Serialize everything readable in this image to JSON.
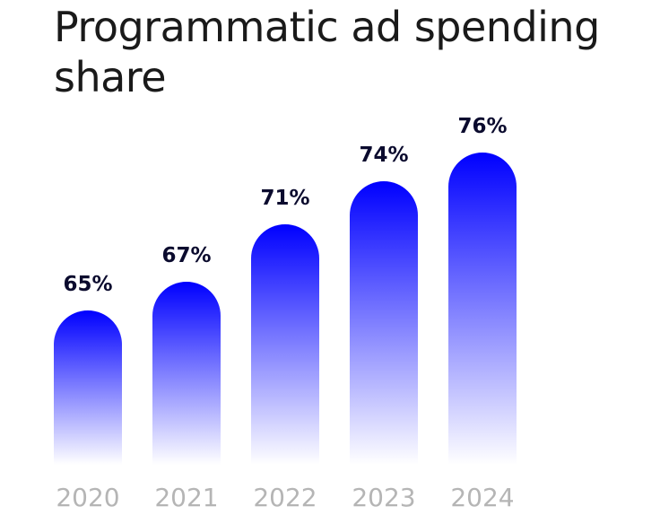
{
  "title": "Programmatic ad spending share",
  "colors": {
    "bar_top": "#0000ff",
    "bar_bottom": "#ffffff",
    "value_text": "#0b0b2e",
    "category_text": "#b5b5b5"
  },
  "chart_data": {
    "type": "bar",
    "title": "Programmatic ad spending share",
    "categories": [
      "2020",
      "2021",
      "2022",
      "2023",
      "2024"
    ],
    "values": [
      65,
      67,
      71,
      74,
      76
    ],
    "value_labels": [
      "65%",
      "67%",
      "71%",
      "74%",
      "76%"
    ],
    "unit": "%",
    "xlabel": "",
    "ylabel": "",
    "grid": false
  }
}
